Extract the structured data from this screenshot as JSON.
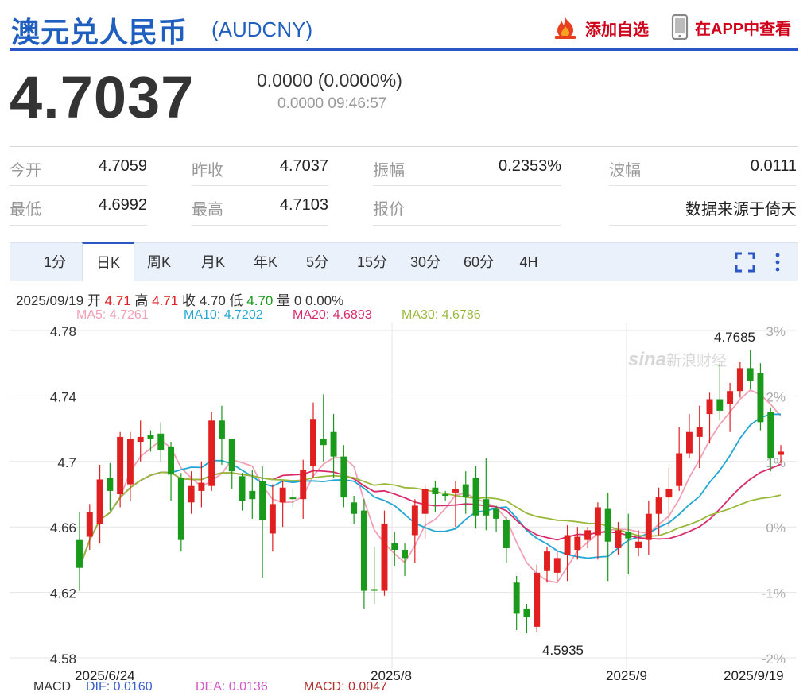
{
  "header": {
    "name": "澳元兑人民币",
    "code": "(AUDCNY)",
    "add_watch_label": "添加自选",
    "app_view_label": "在APP中查看"
  },
  "quote": {
    "price": "4.7037",
    "change": "0.0000 (0.0000%)",
    "time": "0.0000 09:46:57"
  },
  "stats": {
    "rows": [
      [
        {
          "label": "今开",
          "value": "4.7059"
        },
        {
          "label": "昨收",
          "value": "4.7037"
        },
        {
          "label": "振幅",
          "value": "0.2353%"
        },
        {
          "label": "波幅",
          "value": "0.0111"
        }
      ],
      [
        {
          "label": "最低",
          "value": "4.6992"
        },
        {
          "label": "最高",
          "value": "4.7103"
        },
        {
          "label": "报价",
          "value": ""
        },
        {
          "label": "",
          "value": "数据来源于倚天"
        }
      ]
    ]
  },
  "tabs": [
    "1分",
    "日K",
    "周K",
    "月K",
    "年K",
    "5分",
    "15分",
    "30分",
    "60分",
    "4H"
  ],
  "active_tab": "日K",
  "chart_info": {
    "date": "2025/09/19",
    "open_label": "开",
    "open": "4.71",
    "high_label": "高",
    "high": "4.71",
    "close_label": "收",
    "close": "4.70",
    "low_label": "低",
    "low": "4.70",
    "volume_label": "量",
    "volume": "0",
    "pct": "0.00%"
  },
  "ma_legend": [
    {
      "label": "MA5: 4.7261",
      "color": "#f0a0b4"
    },
    {
      "label": "MA10: 4.7202",
      "color": "#22a7d4"
    },
    {
      "label": "MA20: 4.6893",
      "color": "#d92b6b"
    },
    {
      "label": "MA30: 4.6786",
      "color": "#98b93a"
    }
  ],
  "macd_legend": {
    "name": "MACD",
    "dif": "DIF: 0.0160",
    "dea": "DEA: 0.0136",
    "macd": "MACD: 0.0047"
  },
  "watermark": "新浪财经",
  "chart_data": {
    "type": "candlestick",
    "y_ticks": [
      "4.78",
      "4.74",
      "4.7",
      "4.66",
      "4.62",
      "4.58"
    ],
    "ylim": [
      4.58,
      4.78
    ],
    "pct_ticks": [
      "3%",
      "2%",
      "1%",
      "0%",
      "-1%",
      "-2%"
    ],
    "x_labels": [
      "2025/6/24",
      "2025/8",
      "2025/9",
      "2025/9/19"
    ],
    "max_label": "4.7685",
    "min_label": "4.5935",
    "colors": {
      "up": "#e02020",
      "down": "#1a9a1a"
    },
    "candles": [
      {
        "o": 4.652,
        "c": 4.635,
        "h": 4.669,
        "l": 4.621
      },
      {
        "o": 4.654,
        "c": 4.669,
        "h": 4.674,
        "l": 4.646
      },
      {
        "o": 4.662,
        "c": 4.689,
        "h": 4.698,
        "l": 4.65
      },
      {
        "o": 4.69,
        "c": 4.682,
        "h": 4.699,
        "l": 4.67
      },
      {
        "o": 4.68,
        "c": 4.715,
        "h": 4.718,
        "l": 4.672
      },
      {
        "o": 4.686,
        "c": 4.714,
        "h": 4.718,
        "l": 4.676
      },
      {
        "o": 4.712,
        "c": 4.715,
        "h": 4.725,
        "l": 4.7
      },
      {
        "o": 4.716,
        "c": 4.714,
        "h": 4.719,
        "l": 4.706
      },
      {
        "o": 4.717,
        "c": 4.707,
        "h": 4.724,
        "l": 4.7
      },
      {
        "o": 4.709,
        "c": 4.692,
        "h": 4.712,
        "l": 4.676
      },
      {
        "o": 4.69,
        "c": 4.652,
        "h": 4.693,
        "l": 4.645
      },
      {
        "o": 4.675,
        "c": 4.685,
        "h": 4.694,
        "l": 4.668
      },
      {
        "o": 4.682,
        "c": 4.687,
        "h": 4.7,
        "l": 4.672
      },
      {
        "o": 4.685,
        "c": 4.725,
        "h": 4.73,
        "l": 4.682
      },
      {
        "o": 4.725,
        "c": 4.714,
        "h": 4.734,
        "l": 4.698
      },
      {
        "o": 4.714,
        "c": 4.694,
        "h": 4.714,
        "l": 4.683
      },
      {
        "o": 4.691,
        "c": 4.676,
        "h": 4.693,
        "l": 4.67
      },
      {
        "o": 4.682,
        "c": 4.677,
        "h": 4.695,
        "l": 4.665
      },
      {
        "o": 4.688,
        "c": 4.664,
        "h": 4.697,
        "l": 4.629
      },
      {
        "o": 4.656,
        "c": 4.674,
        "h": 4.686,
        "l": 4.645
      },
      {
        "o": 4.675,
        "c": 4.684,
        "h": 4.688,
        "l": 4.66
      },
      {
        "o": 4.678,
        "c": 4.677,
        "h": 4.683,
        "l": 4.672
      },
      {
        "o": 4.677,
        "c": 4.695,
        "h": 4.701,
        "l": 4.665
      },
      {
        "o": 4.697,
        "c": 4.726,
        "h": 4.736,
        "l": 4.69
      },
      {
        "o": 4.714,
        "c": 4.71,
        "h": 4.741,
        "l": 4.7
      },
      {
        "o": 4.718,
        "c": 4.703,
        "h": 4.729,
        "l": 4.69
      },
      {
        "o": 4.703,
        "c": 4.678,
        "h": 4.71,
        "l": 4.672
      },
      {
        "o": 4.675,
        "c": 4.668,
        "h": 4.679,
        "l": 4.662
      },
      {
        "o": 4.67,
        "c": 4.621,
        "h": 4.677,
        "l": 4.61
      },
      {
        "o": 4.622,
        "c": 4.621,
        "h": 4.648,
        "l": 4.613
      },
      {
        "o": 4.621,
        "c": 4.662,
        "h": 4.67,
        "l": 4.618
      },
      {
        "o": 4.65,
        "c": 4.646,
        "h": 4.657,
        "l": 4.636
      },
      {
        "o": 4.646,
        "c": 4.641,
        "h": 4.65,
        "l": 4.63
      },
      {
        "o": 4.655,
        "c": 4.673,
        "h": 4.677,
        "l": 4.638
      },
      {
        "o": 4.668,
        "c": 4.683,
        "h": 4.685,
        "l": 4.653
      },
      {
        "o": 4.684,
        "c": 4.68,
        "h": 4.688,
        "l": 4.669
      },
      {
        "o": 4.68,
        "c": 4.679,
        "h": 4.682,
        "l": 4.676
      },
      {
        "o": 4.681,
        "c": 4.683,
        "h": 4.688,
        "l": 4.66
      },
      {
        "o": 4.686,
        "c": 4.678,
        "h": 4.694,
        "l": 4.668
      },
      {
        "o": 4.69,
        "c": 4.667,
        "h": 4.697,
        "l": 4.659
      },
      {
        "o": 4.677,
        "c": 4.667,
        "h": 4.702,
        "l": 4.658
      },
      {
        "o": 4.671,
        "c": 4.665,
        "h": 4.673,
        "l": 4.657
      },
      {
        "o": 4.664,
        "c": 4.647,
        "h": 4.666,
        "l": 4.638
      },
      {
        "o": 4.626,
        "c": 4.607,
        "h": 4.63,
        "l": 4.597
      },
      {
        "o": 4.61,
        "c": 4.605,
        "h": 4.613,
        "l": 4.595
      },
      {
        "o": 4.599,
        "c": 4.632,
        "h": 4.637,
        "l": 4.596
      },
      {
        "o": 4.633,
        "c": 4.645,
        "h": 4.648,
        "l": 4.626
      },
      {
        "o": 4.632,
        "c": 4.641,
        "h": 4.645,
        "l": 4.627
      },
      {
        "o": 4.643,
        "c": 4.655,
        "h": 4.661,
        "l": 4.627
      },
      {
        "o": 4.646,
        "c": 4.654,
        "h": 4.66,
        "l": 4.64
      },
      {
        "o": 4.652,
        "c": 4.658,
        "h": 4.66,
        "l": 4.647
      },
      {
        "o": 4.655,
        "c": 4.672,
        "h": 4.675,
        "l": 4.64
      },
      {
        "o": 4.671,
        "c": 4.651,
        "h": 4.681,
        "l": 4.627
      },
      {
        "o": 4.647,
        "c": 4.658,
        "h": 4.663,
        "l": 4.643
      },
      {
        "o": 4.657,
        "c": 4.653,
        "h": 4.668,
        "l": 4.631
      },
      {
        "o": 4.647,
        "c": 4.651,
        "h": 4.658,
        "l": 4.642
      },
      {
        "o": 4.652,
        "c": 4.668,
        "h": 4.676,
        "l": 4.643
      },
      {
        "o": 4.668,
        "c": 4.678,
        "h": 4.684,
        "l": 4.655
      },
      {
        "o": 4.678,
        "c": 4.683,
        "h": 4.696,
        "l": 4.66
      },
      {
        "o": 4.685,
        "c": 4.705,
        "h": 4.721,
        "l": 4.682
      },
      {
        "o": 4.705,
        "c": 4.718,
        "h": 4.729,
        "l": 4.702
      },
      {
        "o": 4.715,
        "c": 4.721,
        "h": 4.734,
        "l": 4.696
      },
      {
        "o": 4.729,
        "c": 4.738,
        "h": 4.742,
        "l": 4.711
      },
      {
        "o": 4.738,
        "c": 4.731,
        "h": 4.76,
        "l": 4.725
      },
      {
        "o": 4.735,
        "c": 4.743,
        "h": 4.748,
        "l": 4.718
      },
      {
        "o": 4.743,
        "c": 4.757,
        "h": 4.761,
        "l": 4.739
      },
      {
        "o": 4.757,
        "c": 4.749,
        "h": 4.768,
        "l": 4.744
      },
      {
        "o": 4.754,
        "c": 4.724,
        "h": 4.76,
        "l": 4.719
      },
      {
        "o": 4.73,
        "c": 4.702,
        "h": 4.733,
        "l": 4.694
      },
      {
        "o": 4.704,
        "c": 4.706,
        "h": 4.71,
        "l": 4.699
      }
    ]
  }
}
